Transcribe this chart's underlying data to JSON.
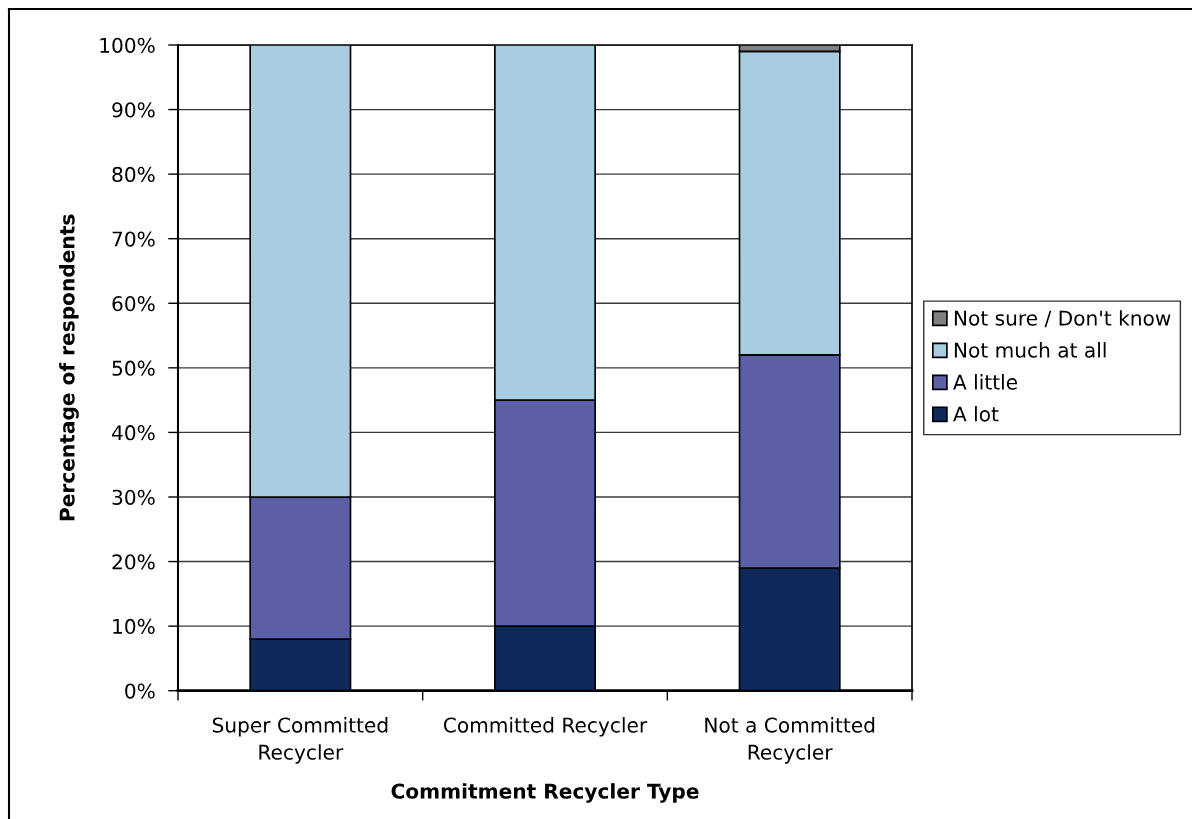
{
  "chart_data": {
    "type": "bar",
    "stacked": true,
    "categories": [
      "Super Committed\nRecycler",
      "Committed Recycler",
      "Not a Committed\nRecycler"
    ],
    "xlabel": "Commitment Recycler Type",
    "ylabel": "Percentage of respondents",
    "series": [
      {
        "name": "A lot",
        "color": "#0f2a5a",
        "values": [
          8,
          10,
          19
        ]
      },
      {
        "name": "A little",
        "color": "#5a5fa6",
        "values": [
          22,
          35,
          33
        ]
      },
      {
        "name": "Not much at all",
        "color": "#a9cde0",
        "values": [
          70,
          55,
          47
        ]
      },
      {
        "name": "Not sure / Don't know",
        "color": "#808080",
        "values": [
          null,
          null,
          1
        ]
      }
    ],
    "ylim": [
      0,
      100
    ],
    "yticks": [
      {
        "value": 0,
        "label": "0%"
      },
      {
        "value": 10,
        "label": "10%"
      },
      {
        "value": 20,
        "label": "20%"
      },
      {
        "value": 30,
        "label": "30%"
      },
      {
        "value": 40,
        "label": "40%"
      },
      {
        "value": 50,
        "label": "50%"
      },
      {
        "value": 60,
        "label": "60%"
      },
      {
        "value": 70,
        "label": "70%"
      },
      {
        "value": 80,
        "label": "80%"
      },
      {
        "value": 90,
        "label": "90%"
      },
      {
        "value": 100,
        "label": "100%"
      }
    ],
    "grid": "y",
    "legend": "right"
  }
}
